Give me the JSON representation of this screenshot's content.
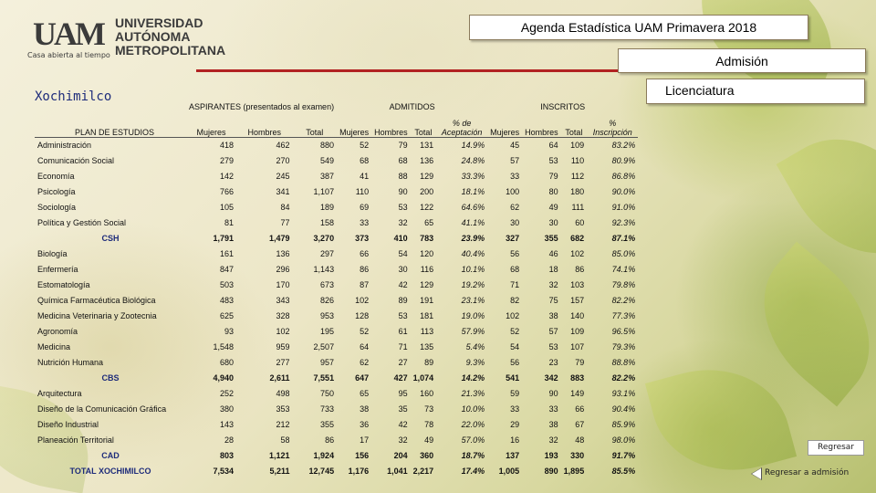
{
  "logo": {
    "mark": "UAM",
    "name_lines": [
      "UNIVERSIDAD",
      "AUTÓNOMA",
      "METROPOLITANA"
    ],
    "tagline": "Casa abierta al tiempo"
  },
  "header": {
    "title": "Agenda Estadística UAM Primavera 2018",
    "section": "Admisión",
    "level": "Licenciatura"
  },
  "campus": "Xochimilco",
  "table": {
    "groups": {
      "aspirantes": "ASPIRANTES (presentados al examen)",
      "admitidos": "ADMITIDOS",
      "inscritos": "INSCRITOS"
    },
    "columns": {
      "plan": "PLAN DE ESTUDIOS",
      "mujeres": "Mujeres",
      "hombres": "Hombres",
      "total": "Total",
      "pct_acept": "% de Aceptación",
      "pct_insc": "% Inscripción"
    },
    "rows": [
      {
        "type": "row",
        "name": "Administración",
        "v": [
          "418",
          "462",
          "880",
          "52",
          "79",
          "131",
          "14.9%",
          "45",
          "64",
          "109",
          "83.2%"
        ]
      },
      {
        "type": "row",
        "name": "Comunicación Social",
        "v": [
          "279",
          "270",
          "549",
          "68",
          "68",
          "136",
          "24.8%",
          "57",
          "53",
          "110",
          "80.9%"
        ]
      },
      {
        "type": "row",
        "name": "Economía",
        "v": [
          "142",
          "245",
          "387",
          "41",
          "88",
          "129",
          "33.3%",
          "33",
          "79",
          "112",
          "86.8%"
        ]
      },
      {
        "type": "row",
        "name": "Psicología",
        "v": [
          "766",
          "341",
          "1,107",
          "110",
          "90",
          "200",
          "18.1%",
          "100",
          "80",
          "180",
          "90.0%"
        ]
      },
      {
        "type": "row",
        "name": "Sociología",
        "v": [
          "105",
          "84",
          "189",
          "69",
          "53",
          "122",
          "64.6%",
          "62",
          "49",
          "111",
          "91.0%"
        ]
      },
      {
        "type": "row",
        "name": "Política y Gestión Social",
        "v": [
          "81",
          "77",
          "158",
          "33",
          "32",
          "65",
          "41.1%",
          "30",
          "30",
          "60",
          "92.3%"
        ]
      },
      {
        "type": "sub",
        "name": "CSH",
        "v": [
          "1,791",
          "1,479",
          "3,270",
          "373",
          "410",
          "783",
          "23.9%",
          "327",
          "355",
          "682",
          "87.1%"
        ]
      },
      {
        "type": "row",
        "name": "Biología",
        "v": [
          "161",
          "136",
          "297",
          "66",
          "54",
          "120",
          "40.4%",
          "56",
          "46",
          "102",
          "85.0%"
        ]
      },
      {
        "type": "row",
        "name": "Enfermería",
        "v": [
          "847",
          "296",
          "1,143",
          "86",
          "30",
          "116",
          "10.1%",
          "68",
          "18",
          "86",
          "74.1%"
        ]
      },
      {
        "type": "row",
        "name": "Estomatología",
        "v": [
          "503",
          "170",
          "673",
          "87",
          "42",
          "129",
          "19.2%",
          "71",
          "32",
          "103",
          "79.8%"
        ]
      },
      {
        "type": "row",
        "name": "Química Farmacéutica Biológica",
        "v": [
          "483",
          "343",
          "826",
          "102",
          "89",
          "191",
          "23.1%",
          "82",
          "75",
          "157",
          "82.2%"
        ]
      },
      {
        "type": "row",
        "name": "Medicina Veterinaria y Zootecnia",
        "v": [
          "625",
          "328",
          "953",
          "128",
          "53",
          "181",
          "19.0%",
          "102",
          "38",
          "140",
          "77.3%"
        ]
      },
      {
        "type": "row",
        "name": "Agronomía",
        "v": [
          "93",
          "102",
          "195",
          "52",
          "61",
          "113",
          "57.9%",
          "52",
          "57",
          "109",
          "96.5%"
        ]
      },
      {
        "type": "row",
        "name": "Medicina",
        "v": [
          "1,548",
          "959",
          "2,507",
          "64",
          "71",
          "135",
          "5.4%",
          "54",
          "53",
          "107",
          "79.3%"
        ]
      },
      {
        "type": "row",
        "name": "Nutrición Humana",
        "v": [
          "680",
          "277",
          "957",
          "62",
          "27",
          "89",
          "9.3%",
          "56",
          "23",
          "79",
          "88.8%"
        ]
      },
      {
        "type": "sub",
        "name": "CBS",
        "v": [
          "4,940",
          "2,611",
          "7,551",
          "647",
          "427",
          "1,074",
          "14.2%",
          "541",
          "342",
          "883",
          "82.2%"
        ]
      },
      {
        "type": "row",
        "name": "Arquitectura",
        "v": [
          "252",
          "498",
          "750",
          "65",
          "95",
          "160",
          "21.3%",
          "59",
          "90",
          "149",
          "93.1%"
        ]
      },
      {
        "type": "row",
        "name": "Diseño de la Comunicación Gráfica",
        "v": [
          "380",
          "353",
          "733",
          "38",
          "35",
          "73",
          "10.0%",
          "33",
          "33",
          "66",
          "90.4%"
        ]
      },
      {
        "type": "row",
        "name": "Diseño Industrial",
        "v": [
          "143",
          "212",
          "355",
          "36",
          "42",
          "78",
          "22.0%",
          "29",
          "38",
          "67",
          "85.9%"
        ]
      },
      {
        "type": "row",
        "name": "Planeación Territorial",
        "v": [
          "28",
          "58",
          "86",
          "17",
          "32",
          "49",
          "57.0%",
          "16",
          "32",
          "48",
          "98.0%"
        ]
      },
      {
        "type": "sub",
        "name": "CAD",
        "v": [
          "803",
          "1,121",
          "1,924",
          "156",
          "204",
          "360",
          "18.7%",
          "137",
          "193",
          "330",
          "91.7%"
        ]
      },
      {
        "type": "sub",
        "name": "TOTAL XOCHIMILCO",
        "v": [
          "7,534",
          "5,211",
          "12,745",
          "1,176",
          "1,041",
          "2,217",
          "17.4%",
          "1,005",
          "890",
          "1,895",
          "85.5%"
        ]
      }
    ]
  },
  "nav": {
    "back": "Regresar",
    "back_admision": "Regresar a admisión"
  }
}
